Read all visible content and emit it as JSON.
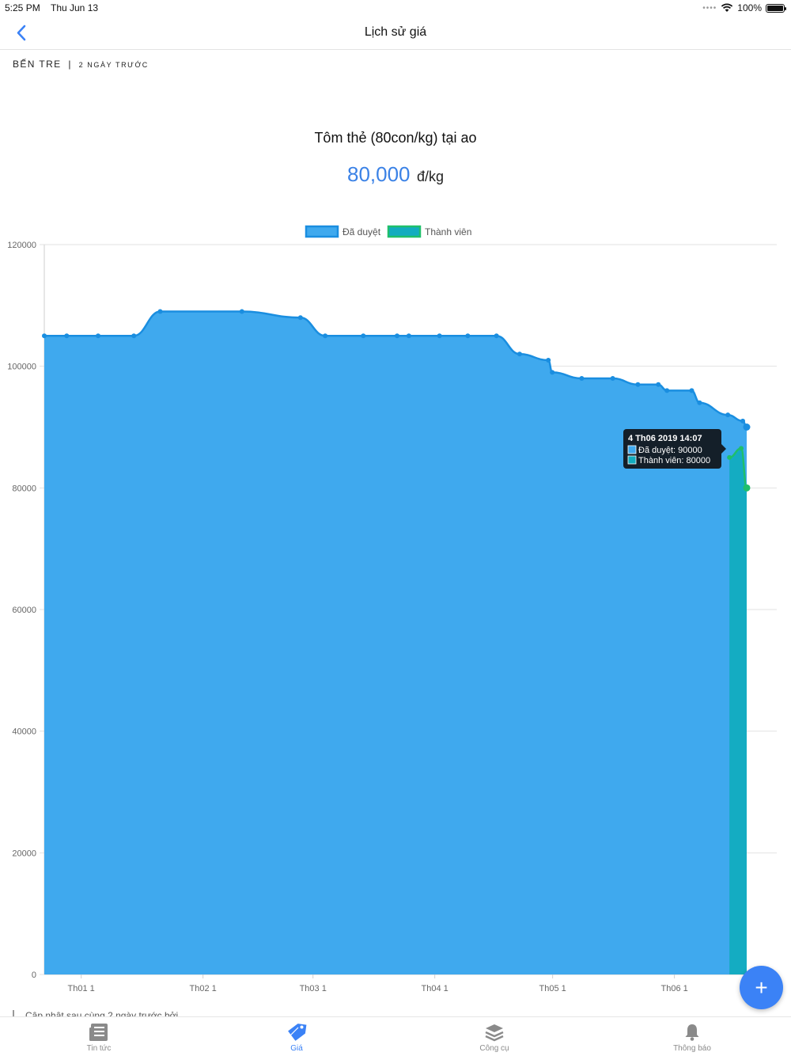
{
  "status_bar": {
    "time": "5:25 PM",
    "date": "Thu Jun 13",
    "battery": "100%"
  },
  "nav": {
    "title": "Lịch sử giá"
  },
  "location": {
    "region": "Bến Tre",
    "separator": "|",
    "updated_ago": "2 ngày trước"
  },
  "product": {
    "name": "Tôm thẻ (80con/kg) tại ao",
    "price": "80,000",
    "unit": "đ/kg"
  },
  "chart_data": {
    "type": "area",
    "title": "",
    "xlabel": "",
    "ylabel": "",
    "ylim": [
      0,
      120000
    ],
    "y_ticks": [
      0,
      20000,
      40000,
      60000,
      80000,
      100000,
      120000
    ],
    "x_tick_labels": [
      "Th01 1",
      "Th02 1",
      "Th03 1",
      "Th04 1",
      "Th05 1",
      "Th06 1"
    ],
    "x_tick_days": [
      0,
      31,
      59,
      90,
      120,
      151
    ],
    "legend_position": "top-center",
    "grid": true,
    "series": [
      {
        "name": "Đã duyệt",
        "color": "#1a8ee0",
        "fill": "#3fa9ee",
        "points": [
          [
            -9.4,
            105000
          ],
          [
            -3.7,
            105000
          ],
          [
            4.3,
            105000
          ],
          [
            13.4,
            105000
          ],
          [
            20.1,
            109000
          ],
          [
            40.9,
            109000
          ],
          [
            55.8,
            108000
          ],
          [
            62.1,
            105000
          ],
          [
            71.8,
            105000
          ],
          [
            80.4,
            105000
          ],
          [
            83.4,
            105000
          ],
          [
            91.2,
            105000
          ],
          [
            98.4,
            105000
          ],
          [
            105.7,
            105000
          ],
          [
            111.6,
            102000
          ],
          [
            118.9,
            101000
          ],
          [
            119.9,
            99000
          ],
          [
            127.4,
            98000
          ],
          [
            135.3,
            98000
          ],
          [
            141.7,
            97000
          ],
          [
            146.9,
            97000
          ],
          [
            149.1,
            96000
          ],
          [
            155.4,
            96000
          ],
          [
            157.4,
            94000
          ],
          [
            164.6,
            92000
          ],
          [
            168.4,
            91000
          ],
          [
            169.4,
            90000
          ]
        ]
      },
      {
        "name": "Thành viên",
        "color": "#1fbf6b",
        "fill": "#12acbf",
        "points": [
          [
            165.0,
            85000
          ],
          [
            168.0,
            86500
          ],
          [
            169.4,
            80000
          ]
        ]
      }
    ],
    "tooltip": {
      "title": "4 Th06 2019 14:07",
      "lines": [
        "Đã duyệt: 90000",
        "Thành viên: 80000"
      ]
    }
  },
  "footer": {
    "note": "Cập nhật sau cùng 2 ngày trước bởi"
  },
  "fab": {
    "label": "+"
  },
  "tabs": [
    {
      "label": "Tin tức",
      "icon": "newspaper-icon",
      "active": false
    },
    {
      "label": "Giá",
      "icon": "price-tag-icon",
      "active": true
    },
    {
      "label": "Công cụ",
      "icon": "layers-icon",
      "active": false
    },
    {
      "label": "Thông báo",
      "icon": "bell-icon",
      "active": false
    }
  ],
  "colors": {
    "accent": "#3b82f6",
    "series_blue": "#1a8ee0",
    "series_green": "#1fbf6b",
    "tooltip_bg": "#101418"
  }
}
